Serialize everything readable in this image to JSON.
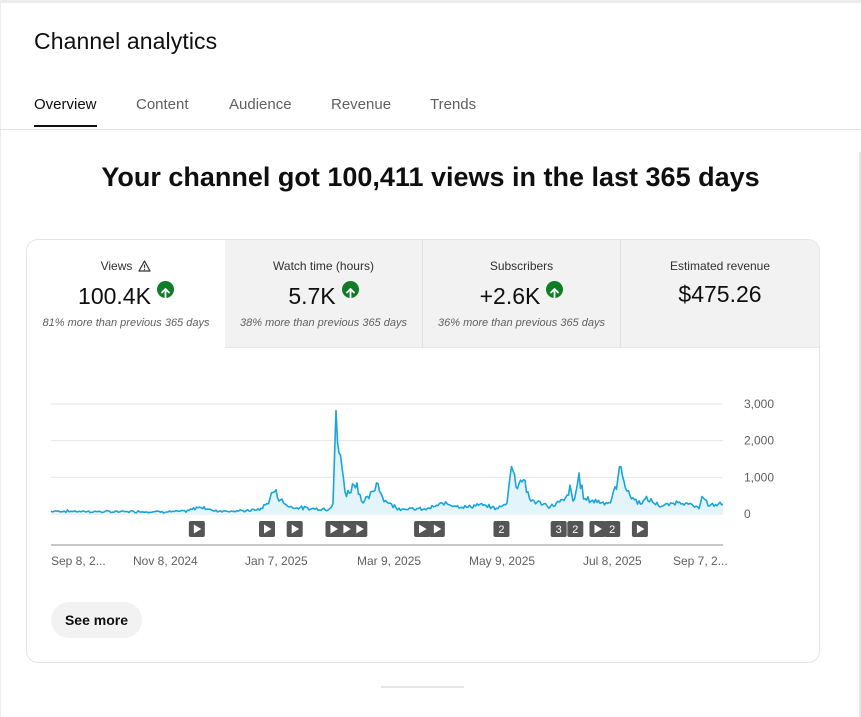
{
  "page": {
    "title": "Channel analytics"
  },
  "tabs": [
    {
      "label": "Overview",
      "active": true
    },
    {
      "label": "Content",
      "active": false
    },
    {
      "label": "Audience",
      "active": false
    },
    {
      "label": "Revenue",
      "active": false
    },
    {
      "label": "Trends",
      "active": false
    }
  ],
  "headline": "Your channel got 100,411 views in the last 365 days",
  "metrics": [
    {
      "label": "Views",
      "value": "100.4K",
      "delta": "81% more than previous 365 days",
      "trend": "up",
      "active": true,
      "warning_icon": true
    },
    {
      "label": "Watch time (hours)",
      "value": "5.7K",
      "delta": "38% more than previous 365 days",
      "trend": "up",
      "active": false
    },
    {
      "label": "Subscribers",
      "value": "+2.6K",
      "delta": "36% more than previous 365 days",
      "trend": "up",
      "active": false
    },
    {
      "label": "Estimated revenue",
      "value": "$475.26",
      "delta": "",
      "active": false
    }
  ],
  "colors": {
    "line": "#1aa5d8",
    "fill": "#e3f4fa",
    "trend_up": "#0f7d25",
    "marker_bg": "#555555"
  },
  "chart_data": {
    "type": "area",
    "title": "",
    "xlabel": "",
    "ylabel": "",
    "ylim": [
      0,
      3000
    ],
    "y_ticks": [
      "3,000",
      "2,000",
      "1,000",
      "0"
    ],
    "x_tick_labels": [
      "Sep 8, 2...",
      "Nov 8, 2024",
      "Jan 7, 2025",
      "Mar 9, 2025",
      "May 9, 2025",
      "Jul 8, 2025",
      "Sep 7, 2..."
    ],
    "x_range": [
      "2024-09-08",
      "2025-09-07"
    ],
    "series": [
      {
        "keypoints": [
          [
            "2024-09-08",
            80
          ],
          [
            "2024-09-25",
            70
          ],
          [
            "2024-10-10",
            60
          ],
          [
            "2024-10-25",
            70
          ],
          [
            "2024-11-08",
            60
          ],
          [
            "2024-11-20",
            70
          ],
          [
            "2024-11-28",
            200
          ],
          [
            "2024-12-05",
            90
          ],
          [
            "2024-12-20",
            80
          ],
          [
            "2024-12-30",
            120
          ],
          [
            "2025-01-03",
            280
          ],
          [
            "2025-01-07",
            650
          ],
          [
            "2025-01-10",
            400
          ],
          [
            "2025-01-15",
            200
          ],
          [
            "2025-01-25",
            150
          ],
          [
            "2025-02-05",
            130
          ],
          [
            "2025-02-08",
            300
          ],
          [
            "2025-02-09",
            2600
          ],
          [
            "2025-02-11",
            1700
          ],
          [
            "2025-02-15",
            500
          ],
          [
            "2025-02-20",
            900
          ],
          [
            "2025-02-24",
            300
          ],
          [
            "2025-03-01",
            550
          ],
          [
            "2025-03-04",
            900
          ],
          [
            "2025-03-07",
            400
          ],
          [
            "2025-03-15",
            150
          ],
          [
            "2025-03-30",
            130
          ],
          [
            "2025-04-10",
            300
          ],
          [
            "2025-04-20",
            180
          ],
          [
            "2025-04-28",
            250
          ],
          [
            "2025-05-08",
            150
          ],
          [
            "2025-05-13",
            300
          ],
          [
            "2025-05-15",
            1400
          ],
          [
            "2025-05-18",
            800
          ],
          [
            "2025-05-22",
            1000
          ],
          [
            "2025-05-25",
            400
          ],
          [
            "2025-06-05",
            200
          ],
          [
            "2025-06-14",
            400
          ],
          [
            "2025-06-16",
            700
          ],
          [
            "2025-06-18",
            300
          ],
          [
            "2025-06-21",
            1000
          ],
          [
            "2025-06-24",
            400
          ],
          [
            "2025-07-01",
            350
          ],
          [
            "2025-07-08",
            300
          ],
          [
            "2025-07-12",
            900
          ],
          [
            "2025-07-14",
            1350
          ],
          [
            "2025-07-17",
            600
          ],
          [
            "2025-07-23",
            300
          ],
          [
            "2025-07-28",
            400
          ],
          [
            "2025-08-05",
            200
          ],
          [
            "2025-08-15",
            350
          ],
          [
            "2025-08-25",
            150
          ],
          [
            "2025-08-27",
            600
          ],
          [
            "2025-08-30",
            200
          ],
          [
            "2025-09-07",
            300
          ]
        ]
      }
    ],
    "video_markers": [
      {
        "date": "2024-11-26",
        "label": ""
      },
      {
        "date": "2025-01-03",
        "label": ""
      },
      {
        "date": "2025-01-18",
        "label": ""
      },
      {
        "date": "2025-02-08",
        "label": ""
      },
      {
        "date": "2025-02-15",
        "label": ""
      },
      {
        "date": "2025-02-22",
        "label": ""
      },
      {
        "date": "2025-03-28",
        "label": ""
      },
      {
        "date": "2025-04-05",
        "label": ""
      },
      {
        "date": "2025-05-10",
        "label": "2"
      },
      {
        "date": "2025-06-10",
        "label": "3"
      },
      {
        "date": "2025-06-19",
        "label": "2"
      },
      {
        "date": "2025-07-01",
        "label": ""
      },
      {
        "date": "2025-07-09",
        "label": "2"
      },
      {
        "date": "2025-07-24",
        "label": ""
      }
    ]
  },
  "buttons": {
    "see_more": "See more"
  }
}
